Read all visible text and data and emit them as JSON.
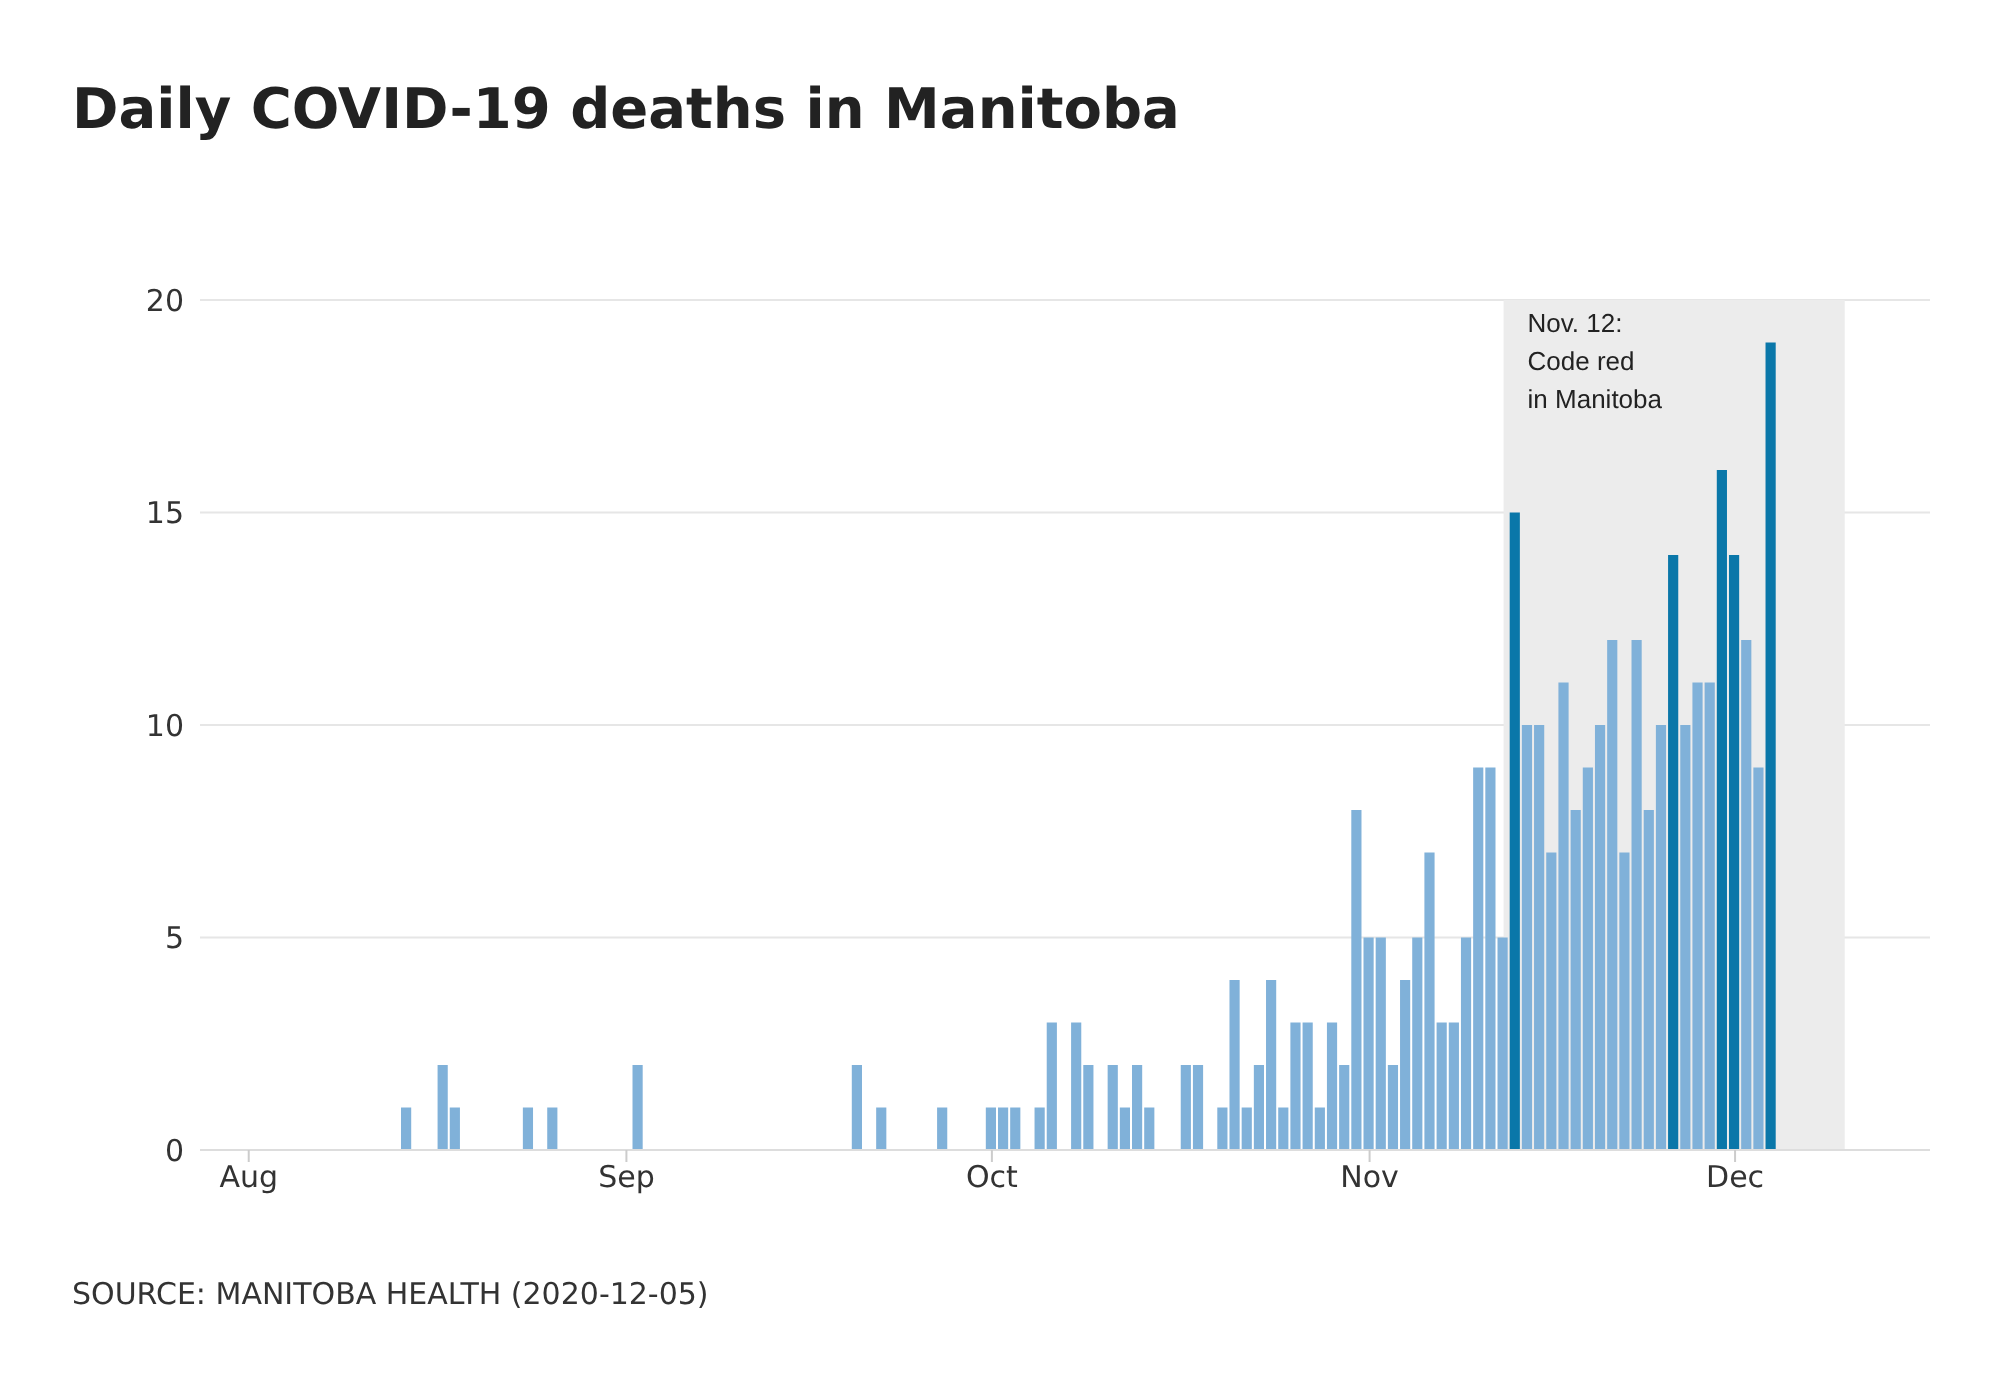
{
  "chart_data": {
    "type": "bar",
    "title": "Daily COVID-19 deaths in Manitoba",
    "x": [
      "2020-08-14",
      "2020-08-17",
      "2020-08-18",
      "2020-08-24",
      "2020-08-26",
      "2020-09-02",
      "2020-09-20",
      "2020-09-22",
      "2020-09-27",
      "2020-10-01",
      "2020-10-02",
      "2020-10-03",
      "2020-10-05",
      "2020-10-06",
      "2020-10-08",
      "2020-10-09",
      "2020-10-11",
      "2020-10-12",
      "2020-10-13",
      "2020-10-14",
      "2020-10-17",
      "2020-10-18",
      "2020-10-20",
      "2020-10-21",
      "2020-10-22",
      "2020-10-23",
      "2020-10-24",
      "2020-10-25",
      "2020-10-26",
      "2020-10-27",
      "2020-10-28",
      "2020-10-29",
      "2020-10-30",
      "2020-10-31",
      "2020-11-01",
      "2020-11-02",
      "2020-11-03",
      "2020-11-04",
      "2020-11-05",
      "2020-11-06",
      "2020-11-07",
      "2020-11-08",
      "2020-11-09",
      "2020-11-10",
      "2020-11-11",
      "2020-11-12",
      "2020-11-13",
      "2020-11-14",
      "2020-11-15",
      "2020-11-16",
      "2020-11-17",
      "2020-11-18",
      "2020-11-19",
      "2020-11-20",
      "2020-11-21",
      "2020-11-22",
      "2020-11-23",
      "2020-11-24",
      "2020-11-25",
      "2020-11-26",
      "2020-11-27",
      "2020-11-28",
      "2020-11-29",
      "2020-11-30",
      "2020-12-01",
      "2020-12-02",
      "2020-12-03",
      "2020-12-04"
    ],
    "values": [
      1,
      2,
      1,
      1,
      1,
      2,
      2,
      1,
      1,
      1,
      1,
      1,
      1,
      3,
      3,
      2,
      2,
      1,
      2,
      1,
      2,
      2,
      1,
      4,
      1,
      2,
      4,
      1,
      3,
      3,
      1,
      3,
      2,
      8,
      5,
      5,
      2,
      4,
      5,
      7,
      3,
      3,
      5,
      9,
      9,
      5,
      15,
      10,
      10,
      7,
      11,
      8,
      9,
      10,
      12,
      7,
      12,
      8,
      10,
      14,
      10,
      11,
      11,
      16,
      14,
      12,
      9,
      19
    ],
    "colors": [
      "#80b1d9",
      "#80b1d9",
      "#80b1d9",
      "#80b1d9",
      "#80b1d9",
      "#80b1d9",
      "#80b1d9",
      "#80b1d9",
      "#80b1d9",
      "#80b1d9",
      "#80b1d9",
      "#80b1d9",
      "#80b1d9",
      "#80b1d9",
      "#80b1d9",
      "#80b1d9",
      "#80b1d9",
      "#80b1d9",
      "#80b1d9",
      "#80b1d9",
      "#80b1d9",
      "#80b1d9",
      "#80b1d9",
      "#80b1d9",
      "#80b1d9",
      "#80b1d9",
      "#80b1d9",
      "#80b1d9",
      "#80b1d9",
      "#80b1d9",
      "#80b1d9",
      "#80b1d9",
      "#80b1d9",
      "#80b1d9",
      "#80b1d9",
      "#80b1d9",
      "#80b1d9",
      "#80b1d9",
      "#80b1d9",
      "#80b1d9",
      "#80b1d9",
      "#80b1d9",
      "#80b1d9",
      "#80b1d9",
      "#80b1d9",
      "#80b1d9",
      "#0a77a9",
      "#80b1d9",
      "#80b1d9",
      "#80b1d9",
      "#80b1d9",
      "#80b1d9",
      "#80b1d9",
      "#80b1d9",
      "#80b1d9",
      "#80b1d9",
      "#80b1d9",
      "#80b1d9",
      "#80b1d9",
      "#0a77a9",
      "#80b1d9",
      "#80b1d9",
      "#80b1d9",
      "#0a77a9",
      "#0a77a9",
      "#80b1d9",
      "#80b1d9",
      "#0a77a9"
    ],
    "xlim": [
      "2020-07-28",
      "2020-12-17"
    ],
    "xticks": [
      {
        "value": "2020-08-01",
        "label": "Aug"
      },
      {
        "value": "2020-09-01",
        "label": "Sep"
      },
      {
        "value": "2020-10-01",
        "label": "Oct"
      },
      {
        "value": "2020-11-01",
        "label": "Nov"
      },
      {
        "value": "2020-12-01",
        "label": "Dec"
      }
    ],
    "ylim": [
      0,
      20
    ],
    "yticks": [
      0,
      5,
      10,
      15,
      20
    ],
    "grid": "y",
    "legend": false,
    "bands": [
      {
        "axis": "x",
        "from": "2020-11-12",
        "to": "2020-12-10",
        "label": "Nov. 12:\nCode red\nin Manitoba",
        "color": "#ececec"
      }
    ],
    "annotations": [
      "SOURCE: MANITOBA HEALTH (2020-12-05)"
    ]
  }
}
